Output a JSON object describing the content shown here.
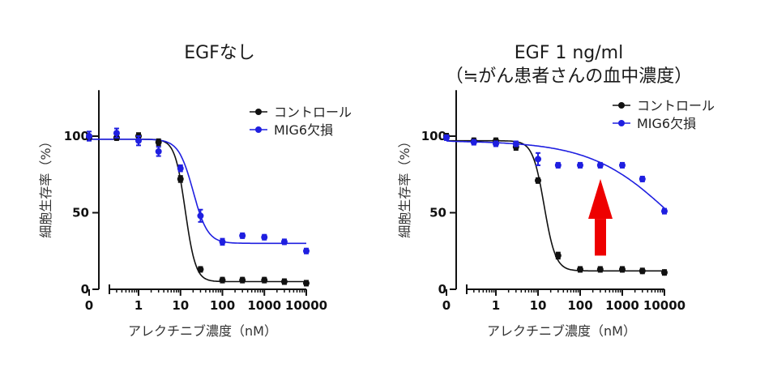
{
  "chart_data": [
    {
      "type": "scatter",
      "title": "EGFなし",
      "subtitle": "",
      "xlabel": "アレクチニブ濃度（nM）",
      "ylabel": "細胞生存率（%）",
      "xscale": "log (with 0 at broken axis start)",
      "xlim": [
        0.1,
        10000
      ],
      "ylim": [
        0,
        130
      ],
      "xticks": [
        "0",
        "1",
        "10",
        "100",
        "1000",
        "10000"
      ],
      "yticks": [
        "0",
        "50",
        "100"
      ],
      "legend_position": "top-right",
      "series": [
        {
          "name": "コントロール",
          "color": "#111111",
          "fit": {
            "top": 98,
            "bottom": 5,
            "ic50": 13,
            "hill": 3.5
          },
          "points": [
            {
              "x": 0,
              "y": 99,
              "err": 1.5
            },
            {
              "x": 0.3,
              "y": 99,
              "err": 1.5
            },
            {
              "x": 1,
              "y": 100,
              "err": 2
            },
            {
              "x": 3,
              "y": 96,
              "err": 2
            },
            {
              "x": 10,
              "y": 72,
              "err": 2
            },
            {
              "x": 30,
              "y": 13,
              "err": 1
            },
            {
              "x": 100,
              "y": 6,
              "err": 0.5
            },
            {
              "x": 300,
              "y": 6,
              "err": 0.5
            },
            {
              "x": 1000,
              "y": 6,
              "err": 0.5
            },
            {
              "x": 3000,
              "y": 5,
              "err": 0.5
            },
            {
              "x": 10000,
              "y": 4,
              "err": 0.5
            }
          ]
        },
        {
          "name": "MIG6欠損",
          "color": "#1f1fe0",
          "fit": {
            "top": 98,
            "bottom": 30,
            "ic50": 20,
            "hill": 2.5
          },
          "points": [
            {
              "x": 0,
              "y": 100,
              "err": 3
            },
            {
              "x": 0.3,
              "y": 102,
              "err": 3
            },
            {
              "x": 1,
              "y": 97,
              "err": 3
            },
            {
              "x": 3,
              "y": 90,
              "err": 3
            },
            {
              "x": 10,
              "y": 79,
              "err": 2
            },
            {
              "x": 30,
              "y": 48,
              "err": 4
            },
            {
              "x": 100,
              "y": 31,
              "err": 2
            },
            {
              "x": 300,
              "y": 35,
              "err": 1.5
            },
            {
              "x": 1000,
              "y": 34,
              "err": 1
            },
            {
              "x": 3000,
              "y": 31,
              "err": 1
            },
            {
              "x": 10000,
              "y": 25,
              "err": 1
            }
          ]
        }
      ]
    },
    {
      "type": "scatter",
      "title": "EGF 1 ng/ml",
      "subtitle": "（≒がん患者さんの血中濃度）",
      "xlabel": "アレクチニブ濃度（nM）",
      "ylabel": "細胞生存率（%）",
      "xscale": "log (with 0 at broken axis start)",
      "xlim": [
        0.1,
        10000
      ],
      "ylim": [
        0,
        130
      ],
      "xticks": [
        "0",
        "1",
        "10",
        "100",
        "1000",
        "10000"
      ],
      "yticks": [
        "0",
        "50",
        "100"
      ],
      "legend_position": "top-right",
      "annotation": {
        "type": "arrow-up",
        "color": "#ee0000"
      },
      "series": [
        {
          "name": "コントロール",
          "color": "#111111",
          "fit": {
            "top": 97,
            "bottom": 12,
            "ic50": 14,
            "hill": 3.2
          },
          "points": [
            {
              "x": 0,
              "y": 100,
              "err": 1
            },
            {
              "x": 0.3,
              "y": 97,
              "err": 1
            },
            {
              "x": 1,
              "y": 97,
              "err": 1
            },
            {
              "x": 3,
              "y": 93,
              "err": 2
            },
            {
              "x": 10,
              "y": 71,
              "err": 1
            },
            {
              "x": 30,
              "y": 22,
              "err": 2
            },
            {
              "x": 100,
              "y": 13,
              "err": 0.5
            },
            {
              "x": 300,
              "y": 13,
              "err": 0.5
            },
            {
              "x": 1000,
              "y": 13,
              "err": 0.5
            },
            {
              "x": 3000,
              "y": 12,
              "err": 0.5
            },
            {
              "x": 10000,
              "y": 11,
              "err": 0.5
            }
          ]
        },
        {
          "name": "MIG6欠損",
          "color": "#1f1fe0",
          "fit": {
            "top": 97,
            "bottom": 0,
            "ic50": 15000,
            "hill": 0.45
          },
          "points": [
            {
              "x": 0,
              "y": 99,
              "err": 1.5
            },
            {
              "x": 0.3,
              "y": 96,
              "err": 1
            },
            {
              "x": 1,
              "y": 95,
              "err": 1
            },
            {
              "x": 3,
              "y": 95,
              "err": 1
            },
            {
              "x": 10,
              "y": 85,
              "err": 4
            },
            {
              "x": 30,
              "y": 81,
              "err": 0.5
            },
            {
              "x": 100,
              "y": 81,
              "err": 0.5
            },
            {
              "x": 300,
              "y": 81,
              "err": 0.5
            },
            {
              "x": 1000,
              "y": 81,
              "err": 0.5
            },
            {
              "x": 3000,
              "y": 72,
              "err": 0.5
            },
            {
              "x": 10000,
              "y": 51,
              "err": 0.5
            }
          ]
        }
      ]
    }
  ]
}
